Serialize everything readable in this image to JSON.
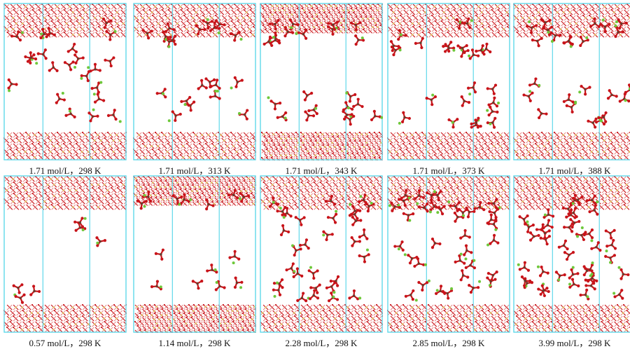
{
  "colors": {
    "cell_border": "#5fd8ea",
    "oxygen": "#c8141a",
    "oxygen_light": "#e36a6a",
    "carbon": "#6b3a2a",
    "lithium": "#6ec83a",
    "slab_yellow": "#e0d060"
  },
  "figure": {
    "rows": [
      {
        "panels": [
          {
            "caption": "1.71 mol/L，298 K",
            "solute_count": 22,
            "spread": "wide"
          },
          {
            "caption": "1.71 mol/L，313 K",
            "solute_count": 20,
            "spread": "bottom"
          },
          {
            "caption": "1.71 mol/L，343 K",
            "solute_count": 22,
            "spread": "bottom"
          },
          {
            "caption": "1.71 mol/L，373 K",
            "solute_count": 24,
            "spread": "wide"
          },
          {
            "caption": "1.71 mol/L，388 K",
            "solute_count": 24,
            "spread": "bottom"
          }
        ]
      },
      {
        "panels": [
          {
            "caption": "0.57 mol/L，298 K",
            "solute_count": 6,
            "spread": "sparse"
          },
          {
            "caption": "1.14 mol/L，298 K",
            "solute_count": 14,
            "spread": "bottom"
          },
          {
            "caption": "2.28 mol/L，298 K",
            "solute_count": 30,
            "spread": "wide"
          },
          {
            "caption": "2.85 mol/L，298 K",
            "solute_count": 36,
            "spread": "wide"
          },
          {
            "caption": "3.99 mol/L，298 K",
            "solute_count": 42,
            "spread": "dense"
          }
        ]
      }
    ]
  }
}
